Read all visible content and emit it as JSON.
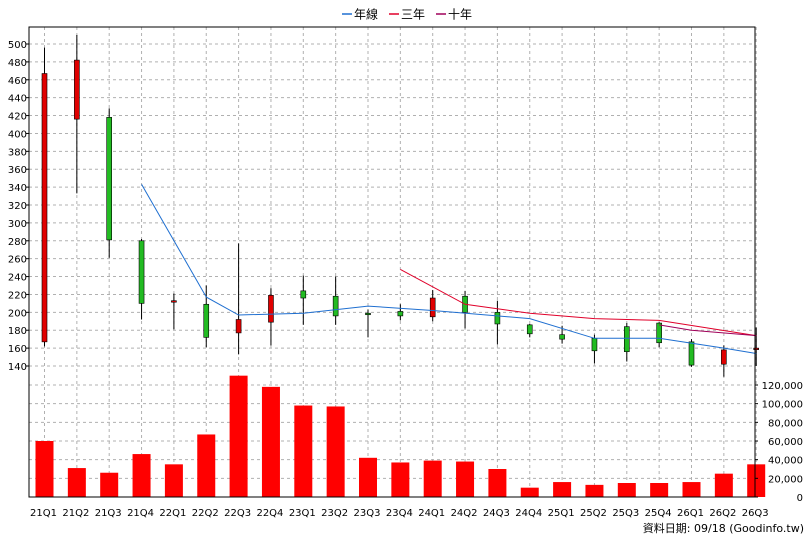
{
  "chart_data": {
    "type": "candlestick+bar",
    "legend": [
      {
        "name": "年線",
        "color": "#1f6fd0"
      },
      {
        "name": "三年",
        "color": "#e0002a"
      },
      {
        "name": "十年",
        "color": "#a0005a"
      }
    ],
    "legend_placement": "top-center",
    "grid": true,
    "categories": [
      "21Q1",
      "21Q2",
      "21Q3",
      "21Q4",
      "22Q1",
      "22Q2",
      "22Q3",
      "22Q4",
      "23Q1",
      "23Q2",
      "23Q3",
      "23Q4",
      "24Q1",
      "24Q2",
      "24Q3",
      "24Q4",
      "25Q1",
      "25Q2",
      "25Q3",
      "25Q4",
      "26Q1",
      "26Q2",
      "26Q3"
    ],
    "price_axis": {
      "ylim": [
        130,
        510
      ],
      "ticks": [
        140,
        160,
        180,
        200,
        220,
        240,
        260,
        280,
        300,
        320,
        340,
        360,
        380,
        400,
        420,
        440,
        460,
        480,
        500
      ]
    },
    "volume_axis": {
      "ylim": [
        0,
        130000
      ],
      "ticks": [
        0,
        20000,
        40000,
        60000,
        80000,
        100000,
        120000
      ],
      "tick_labels": [
        "0",
        "20,000",
        "40,000",
        "60,000",
        "80,000",
        "100,000",
        "120,000"
      ]
    },
    "candles": [
      {
        "open": 167,
        "close": 467,
        "high": 496,
        "low": 162
      },
      {
        "open": 416,
        "close": 482,
        "high": 510,
        "low": 333
      },
      {
        "open": 418,
        "close": 281,
        "high": 428,
        "low": 261
      },
      {
        "open": 280,
        "close": 210,
        "high": 282,
        "low": 192
      },
      {
        "open": 212,
        "close": 213,
        "high": 221,
        "low": 181
      },
      {
        "open": 209,
        "close": 172,
        "high": 230,
        "low": 161
      },
      {
        "open": 177,
        "close": 192,
        "high": 277,
        "low": 153
      },
      {
        "open": 189,
        "close": 219,
        "high": 227,
        "low": 163
      },
      {
        "open": 224,
        "close": 216,
        "high": 241,
        "low": 186
      },
      {
        "open": 218,
        "close": 196,
        "high": 240,
        "low": 186
      },
      {
        "open": 199,
        "close": 198,
        "high": 203,
        "low": 172
      },
      {
        "open": 201,
        "close": 196,
        "high": 209,
        "low": 191
      },
      {
        "open": 195,
        "close": 216,
        "high": 225,
        "low": 190
      },
      {
        "open": 218,
        "close": 200,
        "high": 224,
        "low": 182
      },
      {
        "open": 200,
        "close": 187,
        "high": 213,
        "low": 164
      },
      {
        "open": 186,
        "close": 176,
        "high": 187,
        "low": 172
      },
      {
        "open": 175,
        "close": 170,
        "high": 185,
        "low": 165
      },
      {
        "open": 171,
        "close": 157,
        "high": 175,
        "low": 143
      },
      {
        "open": 184,
        "close": 156,
        "high": 188,
        "low": 145
      },
      {
        "open": 188,
        "close": 166,
        "high": 189,
        "low": 161
      },
      {
        "open": 167,
        "close": 141,
        "high": 170,
        "low": 139
      },
      {
        "open": 142,
        "close": 158,
        "high": 163,
        "low": 128
      },
      {
        "open": 160,
        "close": 160,
        "high": 183,
        "low": 140
      }
    ],
    "ma_series": [
      {
        "name": "年線",
        "color": "#1f6fd0",
        "values": [
          null,
          null,
          null,
          343,
          null,
          217,
          197,
          null,
          199,
          null,
          207,
          null,
          202,
          null,
          null,
          193,
          null,
          171,
          null,
          171,
          null,
          160,
          154
        ]
      },
      {
        "name": "三年",
        "color": "#e0002a",
        "values": [
          null,
          null,
          null,
          null,
          null,
          null,
          null,
          null,
          null,
          null,
          null,
          248,
          null,
          209,
          null,
          199,
          null,
          193,
          null,
          191,
          null,
          null,
          174
        ]
      },
      {
        "name": "十年",
        "color": "#a0005a",
        "values": [
          null,
          null,
          null,
          null,
          null,
          null,
          null,
          null,
          null,
          null,
          null,
          null,
          null,
          null,
          null,
          null,
          null,
          null,
          null,
          186,
          180,
          null,
          174
        ]
      }
    ],
    "volume": [
      60000,
      31000,
      26000,
      46000,
      35000,
      67000,
      130000,
      118000,
      98000,
      97000,
      42000,
      37000,
      39000,
      38000,
      30000,
      10000,
      16000,
      13000,
      15000,
      15000,
      16000,
      25000,
      35000
    ],
    "up_color": "#e00000",
    "down_color": "#22bb22",
    "volume_color": "#ff0000"
  },
  "footer": {
    "source": "資料日期: 09/18  (Goodinfo.tw)"
  }
}
